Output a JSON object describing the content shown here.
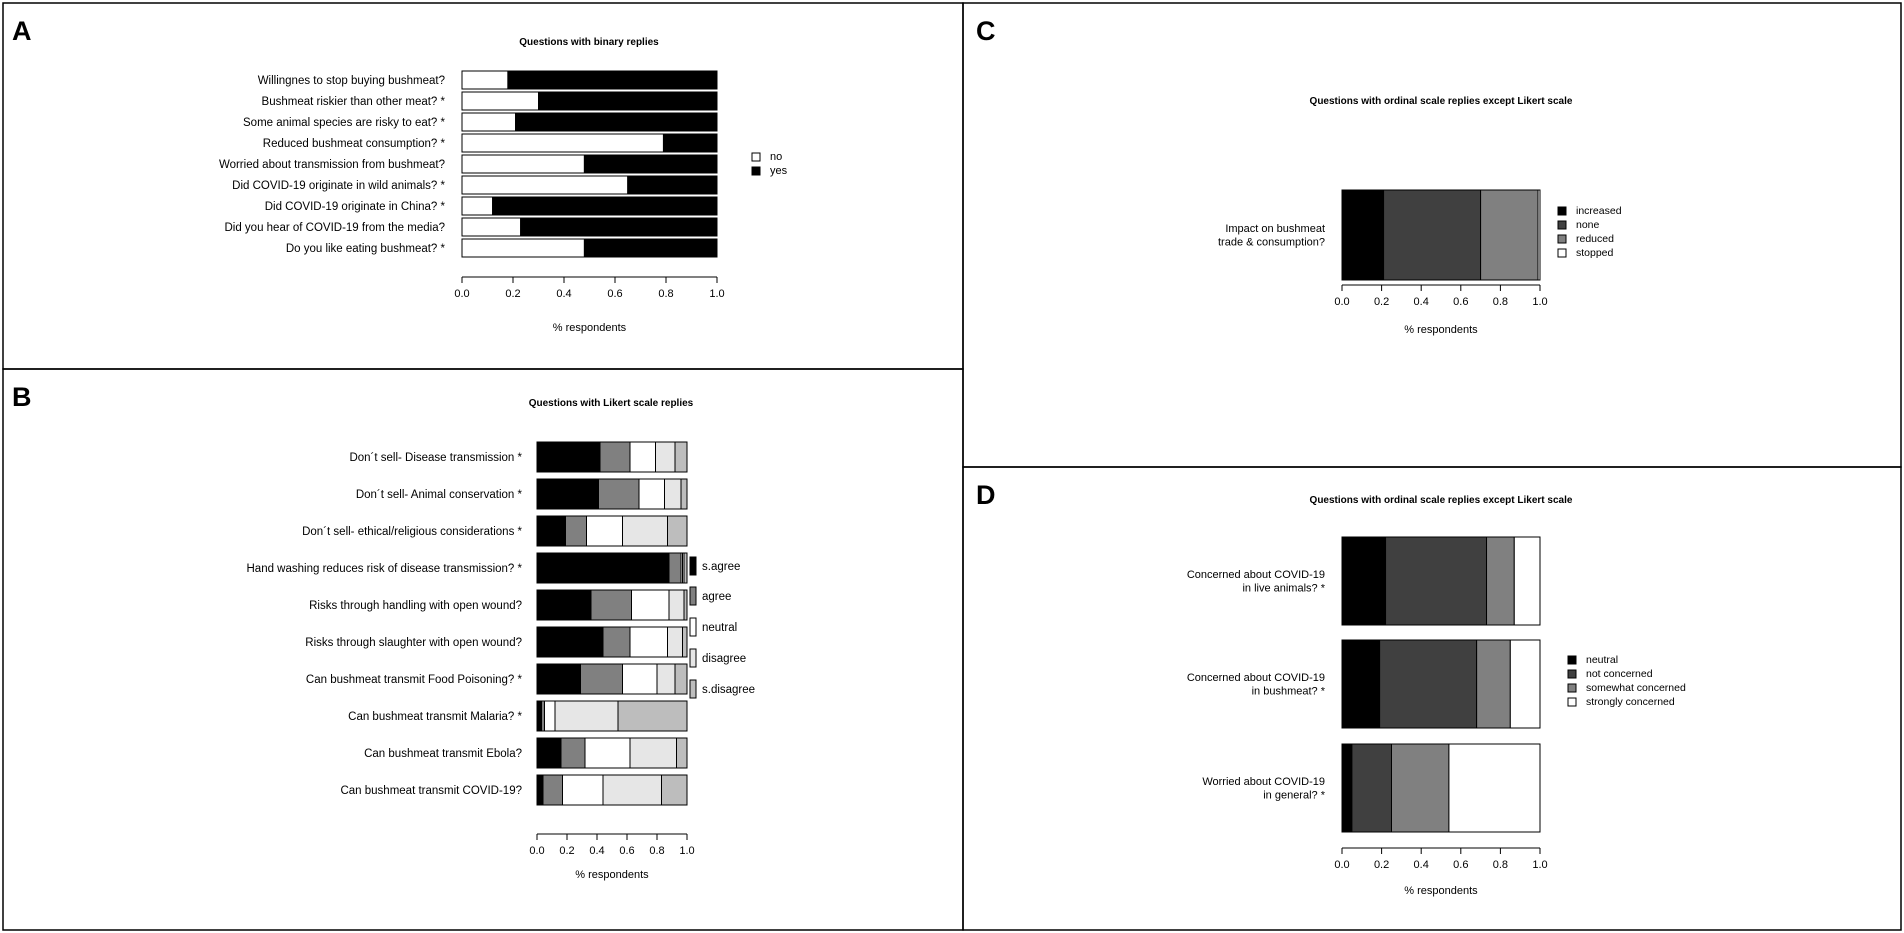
{
  "panels": {
    "A": {
      "letter": "A",
      "chart_data": {
        "type": "bar",
        "orientation": "horizontal",
        "stacked": true,
        "title": "Questions with binary replies",
        "xlabel": "% respondents",
        "xlim": [
          0,
          1
        ],
        "xticks": [
          "0.0",
          "0.2",
          "0.4",
          "0.6",
          "0.8",
          "1.0"
        ],
        "legend_position": "right",
        "categories": [
          "Willingnes to stop buying bushmeat?",
          "Bushmeat riskier than other meat? *",
          "Some animal species are risky to eat? *",
          "Reduced bushmeat consumption? *",
          "Worried about transmission from bushmeat?",
          "Did COVID-19 originate in wild animals? *",
          "Did COVID-19 originate in China? *",
          "Did you hear of COVID-19 from the media?",
          "Do you like eating bushmeat? *"
        ],
        "series": [
          {
            "name": "no",
            "color": "#ffffff",
            "values": [
              0.18,
              0.3,
              0.21,
              0.79,
              0.48,
              0.65,
              0.12,
              0.23,
              0.48
            ]
          },
          {
            "name": "yes",
            "color": "#000000",
            "values": [
              0.82,
              0.7,
              0.79,
              0.21,
              0.52,
              0.35,
              0.88,
              0.77,
              0.52
            ]
          }
        ]
      }
    },
    "B": {
      "letter": "B",
      "chart_data": {
        "type": "bar",
        "orientation": "horizontal",
        "stacked": true,
        "title": "Questions with Likert scale replies",
        "xlabel": "% respondents",
        "xlim": [
          0,
          1
        ],
        "xticks": [
          "0.0",
          "0.2",
          "0.4",
          "0.6",
          "0.8",
          "1.0"
        ],
        "legend_position": "right",
        "categories": [
          "Don´t sell- Disease transmission *",
          "Don´t sell- Animal conservation *",
          "Don´t sell- ethical/religious considerations *",
          "Hand washing reduces risk of disease transmission? *",
          "Risks through handling with open wound?",
          "Risks through slaughter with open wound?",
          "Can bushmeat transmit Food Poisoning? *",
          "Can bushmeat transmit Malaria? *",
          "Can bushmeat transmit Ebola?",
          "Can bushmeat transmit COVID-19?"
        ],
        "series": [
          {
            "name": "s.agree",
            "color": "#000000",
            "values": [
              0.42,
              0.41,
              0.19,
              0.88,
              0.36,
              0.44,
              0.29,
              0.03,
              0.16,
              0.04
            ]
          },
          {
            "name": "agree",
            "color": "#808080",
            "values": [
              0.2,
              0.27,
              0.14,
              0.08,
              0.27,
              0.18,
              0.28,
              0.02,
              0.16,
              0.13
            ]
          },
          {
            "name": "neutral",
            "color": "#ffffff",
            "values": [
              0.17,
              0.17,
              0.24,
              0.01,
              0.25,
              0.25,
              0.23,
              0.07,
              0.3,
              0.27
            ]
          },
          {
            "name": "disagree",
            "color": "#e6e6e6",
            "values": [
              0.13,
              0.11,
              0.3,
              0.01,
              0.1,
              0.1,
              0.12,
              0.42,
              0.31,
              0.39
            ]
          },
          {
            "name": "s.disagree",
            "color": "#bdbdbd",
            "values": [
              0.08,
              0.04,
              0.13,
              0.02,
              0.02,
              0.03,
              0.08,
              0.46,
              0.07,
              0.17
            ]
          }
        ]
      }
    },
    "C": {
      "letter": "C",
      "chart_data": {
        "type": "bar",
        "orientation": "horizontal",
        "stacked": true,
        "title": "Questions with ordinal scale replies except Likert scale",
        "xlabel": "% respondents",
        "xlim": [
          0,
          1
        ],
        "xticks": [
          "0.0",
          "0.2",
          "0.4",
          "0.6",
          "0.8",
          "1.0"
        ],
        "legend_position": "right",
        "categories": [
          "Impact on bushmeat\ntrade & consumption?"
        ],
        "series": [
          {
            "name": "increased",
            "color": "#000000",
            "values": [
              0.21
            ]
          },
          {
            "name": "none",
            "color": "#404040",
            "values": [
              0.49
            ]
          },
          {
            "name": "reduced",
            "color": "#808080",
            "values": [
              0.29
            ]
          },
          {
            "name": "stopped",
            "color": "#ffffff",
            "values": [
              0.01
            ]
          }
        ]
      }
    },
    "D": {
      "letter": "D",
      "chart_data": {
        "type": "bar",
        "orientation": "horizontal",
        "stacked": true,
        "title": "Questions with ordinal scale replies except Likert scale",
        "xlabel": "% respondents",
        "xlim": [
          0,
          1
        ],
        "xticks": [
          "0.0",
          "0.2",
          "0.4",
          "0.6",
          "0.8",
          "1.0"
        ],
        "legend_position": "right",
        "categories": [
          "Concerned about COVID-19\nin live animals? *",
          "Concerned about COVID-19\nin bushmeat? *",
          "Worried about COVID-19\nin general? *"
        ],
        "series": [
          {
            "name": "neutral",
            "color": "#000000",
            "values": [
              0.22,
              0.19,
              0.05
            ]
          },
          {
            "name": "not concerned",
            "color": "#404040",
            "values": [
              0.51,
              0.49,
              0.2
            ]
          },
          {
            "name": "somewhat concerned",
            "color": "#808080",
            "values": [
              0.14,
              0.17,
              0.29
            ]
          },
          {
            "name": "strongly concerned",
            "color": "#ffffff",
            "values": [
              0.13,
              0.15,
              0.46
            ]
          }
        ]
      }
    }
  }
}
